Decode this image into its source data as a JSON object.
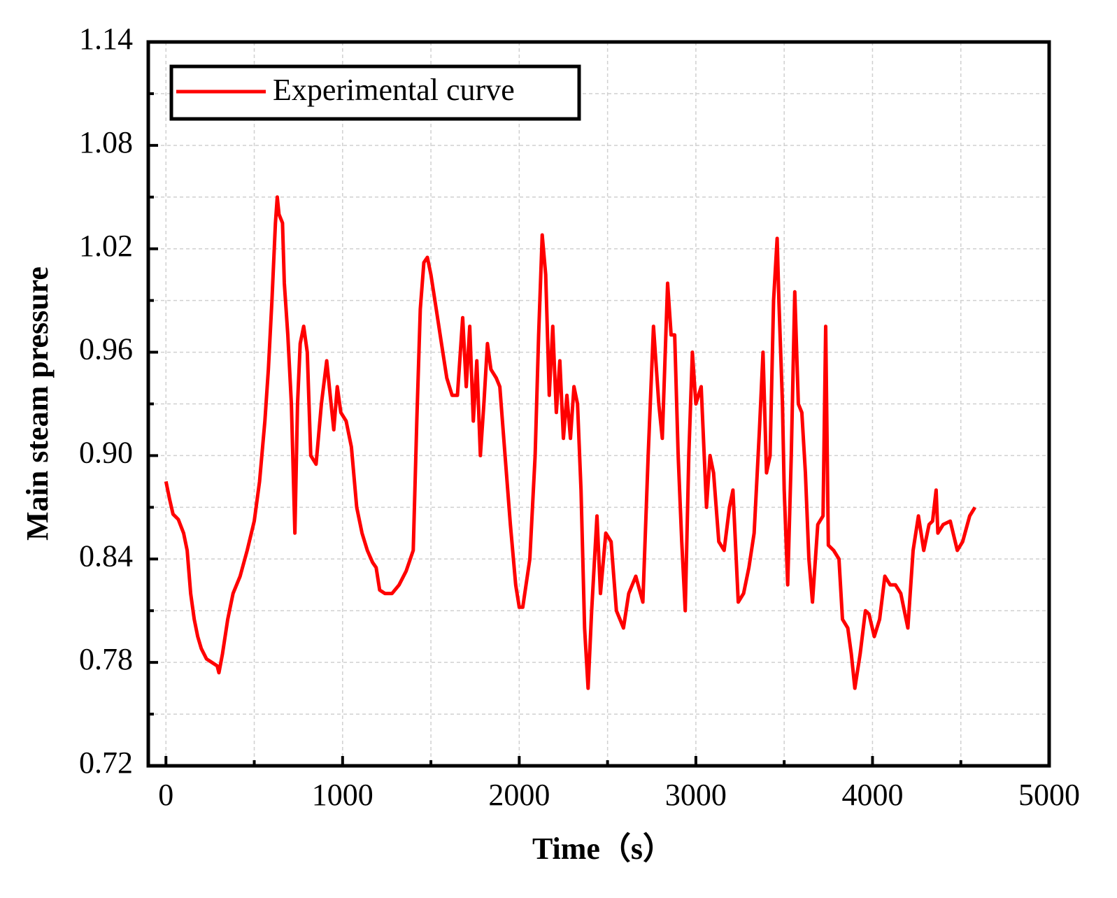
{
  "chart_data": {
    "type": "line",
    "xlabel": "Time（s）",
    "ylabel": "Main steam pressure",
    "xlim": [
      -100,
      5000
    ],
    "xticks": [
      0,
      1000,
      2000,
      3000,
      4000,
      5000
    ],
    "xminorticks": [
      500,
      1500,
      2500,
      3500,
      4500
    ],
    "ylim": [
      0.72,
      1.14
    ],
    "yticks": [
      0.72,
      0.78,
      0.84,
      {
        "value": 0.9,
        "label": "0.90"
      },
      0.96,
      1.02,
      1.08,
      1.14
    ],
    "yminorticks": [
      0.75,
      0.81,
      0.87,
      0.93,
      0.99,
      1.05,
      1.11
    ],
    "grid": true,
    "legend": "upper left",
    "x": [
      0,
      20,
      40,
      70,
      100,
      120,
      140,
      160,
      180,
      200,
      230,
      260,
      290,
      300,
      320,
      350,
      380,
      420,
      460,
      500,
      530,
      560,
      580,
      600,
      620,
      630,
      640,
      660,
      670,
      690,
      710,
      730,
      745,
      760,
      780,
      800,
      820,
      850,
      880,
      910,
      930,
      950,
      970,
      990,
      1020,
      1050,
      1080,
      1110,
      1140,
      1170,
      1190,
      1210,
      1240,
      1280,
      1320,
      1360,
      1400,
      1420,
      1440,
      1460,
      1480,
      1500,
      1530,
      1560,
      1590,
      1620,
      1650,
      1660,
      1680,
      1700,
      1720,
      1740,
      1760,
      1780,
      1800,
      1820,
      1840,
      1870,
      1890,
      1920,
      1950,
      1980,
      2000,
      2020,
      2060,
      2090,
      2110,
      2130,
      2150,
      2170,
      2190,
      2210,
      2230,
      2250,
      2270,
      2290,
      2310,
      2330,
      2350,
      2370,
      2390,
      2410,
      2440,
      2460,
      2490,
      2520,
      2550,
      2590,
      2620,
      2660,
      2700,
      2730,
      2760,
      2790,
      2810,
      2840,
      2860,
      2880,
      2900,
      2920,
      2940,
      2960,
      2980,
      3000,
      3030,
      3060,
      3080,
      3100,
      3130,
      3160,
      3190,
      3210,
      3240,
      3270,
      3300,
      3330,
      3360,
      3380,
      3400,
      3420,
      3440,
      3460,
      3470,
      3490,
      3500,
      3520,
      3540,
      3560,
      3580,
      3600,
      3620,
      3640,
      3660,
      3690,
      3720,
      3735,
      3750,
      3780,
      3810,
      3830,
      3860,
      3880,
      3900,
      3930,
      3960,
      3980,
      4010,
      4040,
      4070,
      4100,
      4130,
      4160,
      4180,
      4200,
      4230,
      4260,
      4290,
      4320,
      4340,
      4360,
      4370,
      4400,
      4440,
      4480,
      4510,
      4550,
      4580
    ],
    "series": [
      {
        "name": "Experimental curve",
        "color": "#ff0000",
        "values": [
          0.885,
          0.875,
          0.866,
          0.863,
          0.855,
          0.845,
          0.82,
          0.805,
          0.795,
          0.788,
          0.782,
          0.78,
          0.778,
          0.774,
          0.785,
          0.805,
          0.82,
          0.83,
          0.845,
          0.862,
          0.885,
          0.92,
          0.95,
          0.99,
          1.035,
          1.05,
          1.04,
          1.035,
          1.0,
          0.97,
          0.93,
          0.855,
          0.93,
          0.965,
          0.975,
          0.96,
          0.9,
          0.895,
          0.93,
          0.955,
          0.935,
          0.915,
          0.94,
          0.925,
          0.92,
          0.905,
          0.87,
          0.855,
          0.845,
          0.838,
          0.835,
          0.822,
          0.82,
          0.82,
          0.825,
          0.833,
          0.845,
          0.92,
          0.985,
          1.012,
          1.015,
          1.005,
          0.985,
          0.965,
          0.945,
          0.935,
          0.935,
          0.95,
          0.98,
          0.94,
          0.975,
          0.92,
          0.955,
          0.9,
          0.93,
          0.965,
          0.95,
          0.945,
          0.94,
          0.9,
          0.86,
          0.825,
          0.812,
          0.812,
          0.84,
          0.9,
          0.97,
          1.028,
          1.005,
          0.935,
          0.975,
          0.925,
          0.955,
          0.91,
          0.935,
          0.91,
          0.94,
          0.93,
          0.88,
          0.8,
          0.765,
          0.81,
          0.865,
          0.82,
          0.855,
          0.85,
          0.81,
          0.8,
          0.82,
          0.83,
          0.815,
          0.9,
          0.975,
          0.93,
          0.91,
          1.0,
          0.97,
          0.97,
          0.9,
          0.85,
          0.81,
          0.9,
          0.96,
          0.93,
          0.94,
          0.87,
          0.9,
          0.89,
          0.85,
          0.845,
          0.87,
          0.88,
          0.815,
          0.82,
          0.835,
          0.855,
          0.915,
          0.96,
          0.89,
          0.9,
          0.99,
          1.026,
          0.99,
          0.93,
          0.88,
          0.825,
          0.9,
          0.995,
          0.93,
          0.925,
          0.89,
          0.84,
          0.815,
          0.86,
          0.865,
          0.975,
          0.848,
          0.845,
          0.84,
          0.805,
          0.8,
          0.785,
          0.765,
          0.785,
          0.81,
          0.808,
          0.795,
          0.805,
          0.83,
          0.825,
          0.825,
          0.82,
          0.81,
          0.8,
          0.845,
          0.865,
          0.845,
          0.86,
          0.862,
          0.88,
          0.855,
          0.86,
          0.862,
          0.845,
          0.85,
          0.865,
          0.87
        ]
      }
    ]
  }
}
